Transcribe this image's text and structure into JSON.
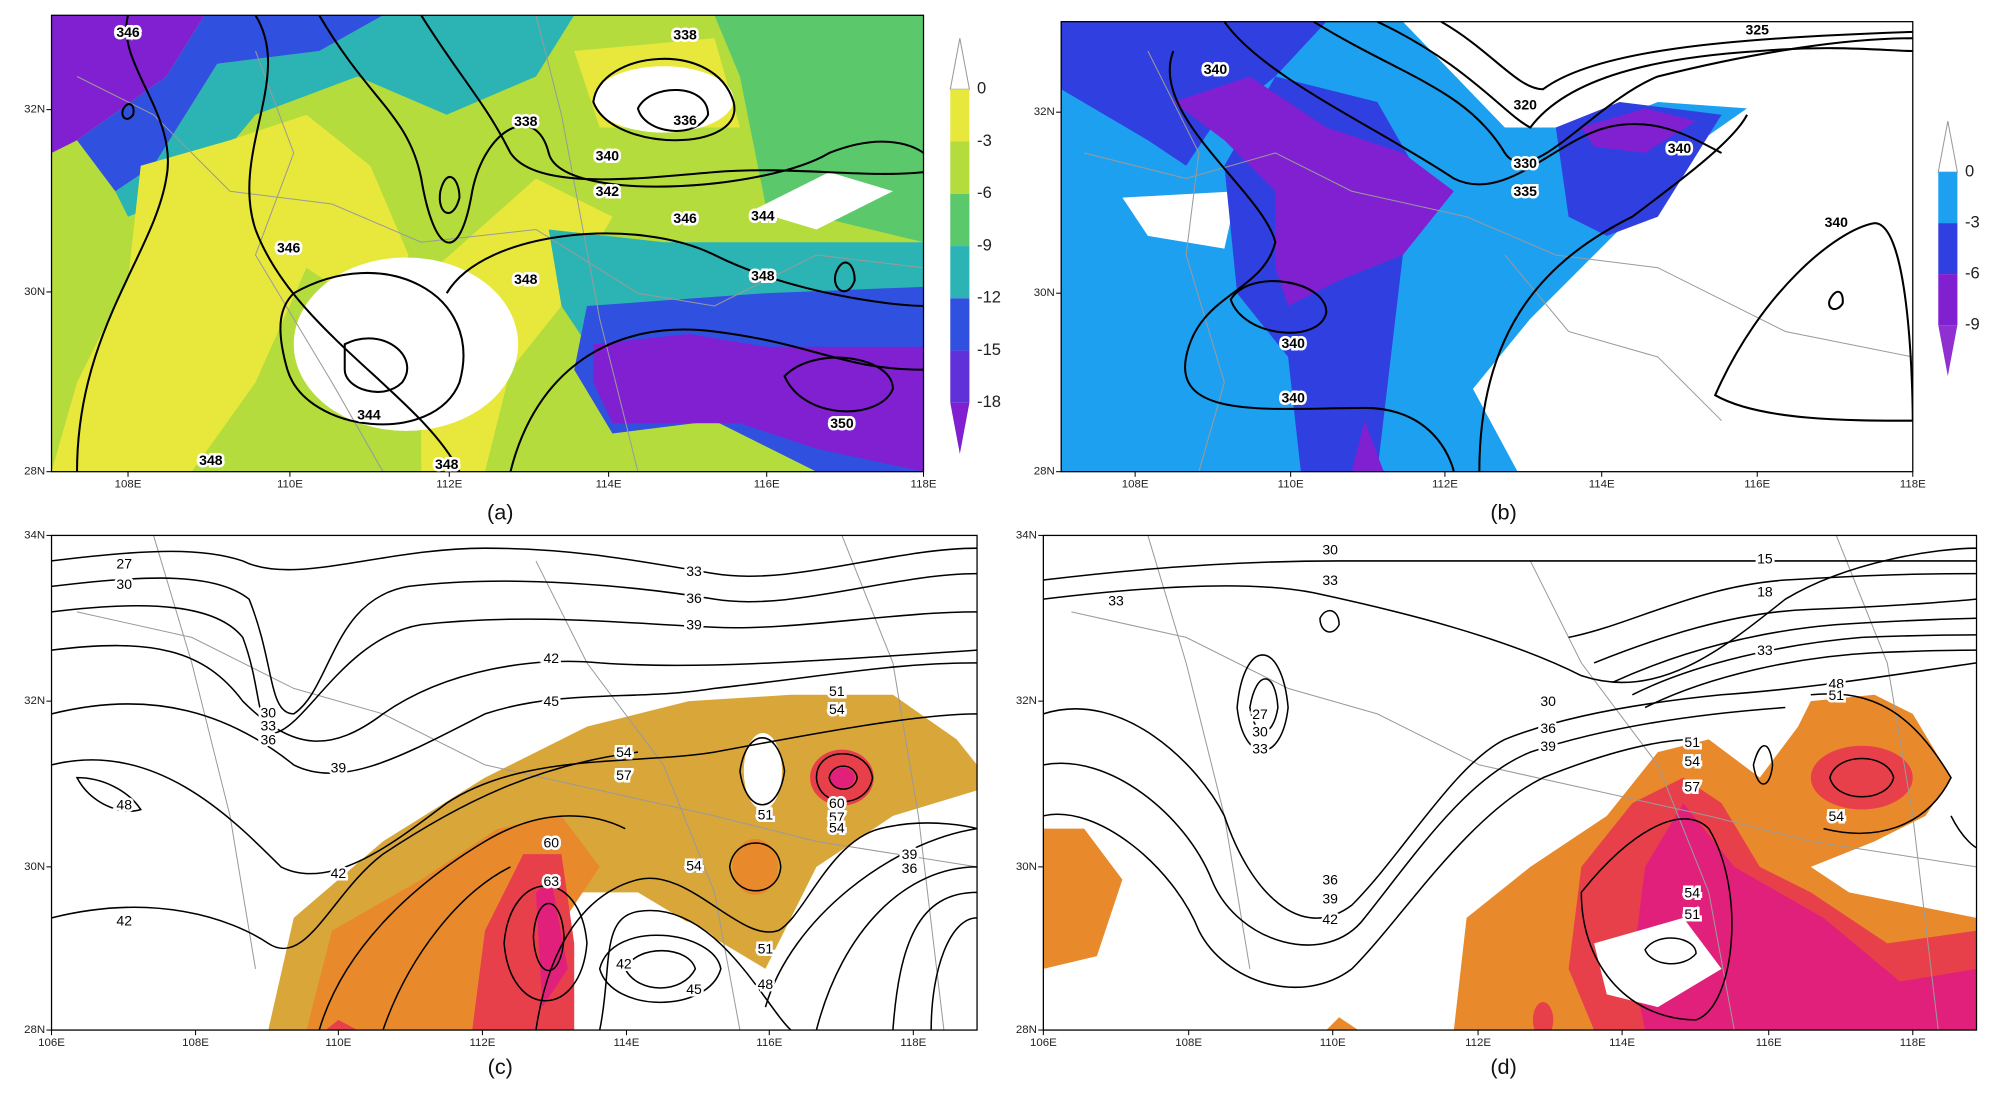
{
  "panels": [
    {
      "caption": "(a)",
      "x_ticks": [
        "108E",
        "110E",
        "112E",
        "114E",
        "116E",
        "118E"
      ],
      "y_ticks": [
        "32N",
        "30N",
        "28N"
      ],
      "colorbar_ticks": [
        0,
        -3,
        -6,
        -9,
        -12,
        -15,
        -18
      ],
      "contour_labels": [
        346,
        338,
        338,
        336,
        340,
        342,
        346,
        344,
        346,
        348,
        348,
        344,
        348,
        348,
        350
      ]
    },
    {
      "caption": "(b)",
      "x_ticks": [
        "108E",
        "110E",
        "112E",
        "114E",
        "116E",
        "118E"
      ],
      "y_ticks": [
        "32N",
        "30N",
        "28N"
      ],
      "colorbar_ticks": [
        0,
        -3,
        -6,
        -9
      ],
      "contour_labels": [
        340,
        325,
        320,
        330,
        335,
        340,
        340,
        340,
        340
      ]
    },
    {
      "caption": "(c)",
      "x_ticks": [
        "106E",
        "108E",
        "110E",
        "112E",
        "114E",
        "116E",
        "118E"
      ],
      "y_ticks": [
        "34N",
        "32N",
        "30N",
        "28N"
      ],
      "contour_labels": [
        27,
        30,
        33,
        36,
        39,
        42,
        45,
        30,
        33,
        36,
        39,
        48,
        54,
        57,
        51,
        54,
        51,
        60,
        57,
        54,
        60,
        63,
        39,
        36,
        42,
        54,
        42,
        51,
        42,
        48,
        45
      ]
    },
    {
      "caption": "(d)",
      "x_ticks": [
        "106E",
        "108E",
        "110E",
        "112E",
        "114E",
        "116E",
        "118E"
      ],
      "y_ticks": [
        "34N",
        "32N",
        "30N",
        "28N"
      ],
      "contour_labels": [
        30,
        33,
        15,
        18,
        33,
        33,
        30,
        36,
        39,
        27,
        30,
        33,
        48,
        51,
        51,
        54,
        57,
        54,
        36,
        39,
        42,
        54,
        51
      ]
    }
  ]
}
